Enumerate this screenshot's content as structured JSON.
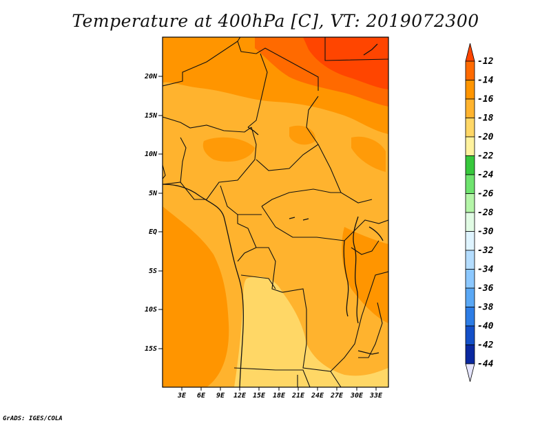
{
  "title": "Temperature at 400hPa [C], VT: 2019072300",
  "credit": "GrADS: IGES/COLA",
  "map": {
    "lat_ticks": [
      "20N",
      "15N",
      "10N",
      "5N",
      "EQ",
      "5S",
      "10S",
      "15S"
    ],
    "lon_ticks": [
      "3E",
      "6E",
      "9E",
      "12E",
      "15E",
      "18E",
      "21E",
      "24E",
      "27E",
      "30E",
      "33E"
    ]
  },
  "legend": {
    "labels": [
      "-12",
      "-14",
      "-16",
      "-18",
      "-20",
      "-22",
      "-24",
      "-26",
      "-28",
      "-30",
      "-32",
      "-34",
      "-36",
      "-38",
      "-40",
      "-42",
      "-44"
    ],
    "colors": [
      "#ff4500",
      "#ff6a00",
      "#ff9500",
      "#ffb32e",
      "#ffd766",
      "#fff29e",
      "#37c83c",
      "#6ee36e",
      "#b4f5a8",
      "#e1fbe4",
      "#dff4ff",
      "#b4ddff",
      "#8cc8ff",
      "#5aa8f5",
      "#2d7de6",
      "#1450c8",
      "#0a28a0",
      "#060f55"
    ]
  }
}
